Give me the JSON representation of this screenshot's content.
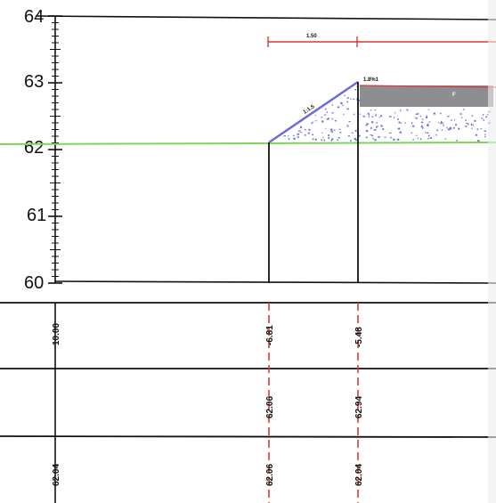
{
  "colors": {
    "ground_line": "#7fd45a",
    "slope": "#6c6cd8",
    "dim_line": "#d83a3a",
    "fill_dots": "#7a70d6",
    "pavement": "#8e8e92",
    "ink": "#111111"
  },
  "axis": {
    "tick_labels": [
      "64",
      "63",
      "62",
      "61",
      "60"
    ],
    "values": [
      64,
      63,
      62,
      61,
      60
    ]
  },
  "top_dimension": {
    "label": "1.50"
  },
  "slope_label": "1:1.5",
  "crest_label": "1.8%1",
  "pavement_mark": "F",
  "stations": [
    {
      "offset": "10.00",
      "design": "",
      "existing": "62.04"
    },
    {
      "offset": "-6.81",
      "design": "62.06",
      "existing": "62.06"
    },
    {
      "offset": "-5.48",
      "design": "62.94",
      "existing": "62.04"
    }
  ]
}
